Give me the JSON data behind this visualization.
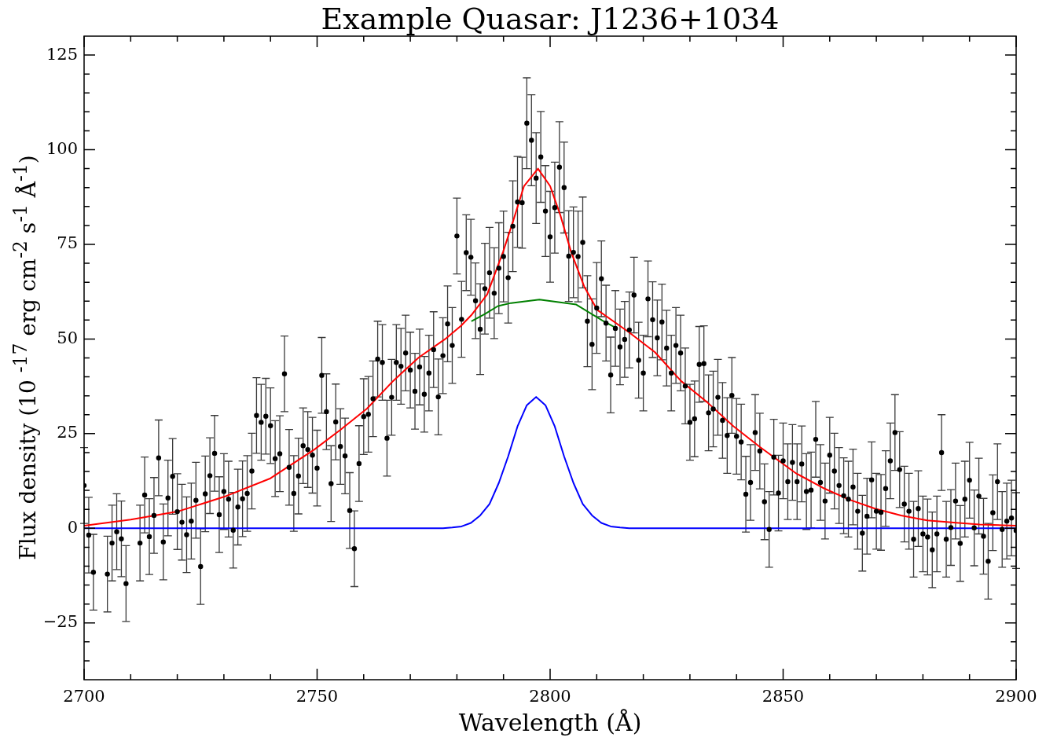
{
  "chart_data": {
    "type": "scatter",
    "title": "Example Quasar: J1236+1034",
    "xlabel": "Wavelength (Å)",
    "ylabel": "Flux density (10 $^{-17}$ erg cm$^{-2}$ s$^{-1}$ Å$^{-1}$)",
    "xlim": [
      2700,
      2900
    ],
    "xticks": [
      2700,
      {
        "value": 2710,
        "label": null
      },
      {
        "value": 2720,
        "label": null
      },
      {
        "value": 2730,
        "label": null
      },
      {
        "value": 2740,
        "label": null
      },
      2750,
      {
        "value": 2760,
        "label": null
      },
      {
        "value": 2770,
        "label": null
      },
      {
        "value": 2780,
        "label": null
      },
      {
        "value": 2790,
        "label": null
      },
      2800,
      {
        "value": 2810,
        "label": null
      },
      {
        "value": 2820,
        "label": null
      },
      {
        "value": 2830,
        "label": null
      },
      {
        "value": 2840,
        "label": null
      },
      2850,
      {
        "value": 2860,
        "label": null
      },
      {
        "value": 2870,
        "label": null
      },
      {
        "value": 2880,
        "label": null
      },
      {
        "value": 2890,
        "label": null
      },
      2900
    ],
    "ylim": [
      -40,
      130
    ],
    "yticks": [
      {
        "value": -35,
        "label": null
      },
      {
        "value": -30,
        "label": null
      },
      {
        "value": -25,
        "label": "−25"
      },
      {
        "value": -20,
        "label": null
      },
      {
        "value": -15,
        "label": null
      },
      {
        "value": -10,
        "label": null
      },
      {
        "value": -5,
        "label": null
      },
      0,
      {
        "value": 5,
        "label": null
      },
      {
        "value": 10,
        "label": null
      },
      {
        "value": 15,
        "label": null
      },
      {
        "value": 20,
        "label": null
      },
      25,
      {
        "value": 30,
        "label": null
      },
      {
        "value": 35,
        "label": null
      },
      {
        "value": 40,
        "label": null
      },
      {
        "value": 45,
        "label": null
      },
      50,
      {
        "value": 55,
        "label": null
      },
      {
        "value": 60,
        "label": null
      },
      {
        "value": 65,
        "label": null
      },
      {
        "value": 70,
        "label": null
      },
      75,
      {
        "value": 80,
        "label": null
      },
      {
        "value": 85,
        "label": null
      },
      {
        "value": 90,
        "label": null
      },
      {
        "value": 95,
        "label": null
      },
      100,
      {
        "value": 105,
        "label": null
      },
      {
        "value": 110,
        "label": null
      },
      {
        "value": 115,
        "label": null
      },
      {
        "value": 120,
        "label": null
      },
      125
    ],
    "marker": "circle",
    "series": [
      {
        "type": "scatter",
        "color": "#000000",
        "x": [
          2700,
          2701,
          2702,
          2705,
          2706,
          2707,
          2708,
          2709,
          2712,
          2713,
          2714,
          2715,
          2716,
          2717,
          2718,
          2719,
          2720,
          2721,
          2722,
          2723,
          2724,
          2725,
          2726,
          2727,
          2728,
          2729,
          2730,
          2731,
          2732,
          2733,
          2734,
          2735,
          2736,
          2737,
          2738,
          2739,
          2740,
          2741,
          2742,
          2743,
          2744,
          2745,
          2746,
          2747,
          2748,
          2749,
          2750,
          2751,
          2752,
          2753,
          2754,
          2755,
          2756,
          2757,
          2758,
          2759,
          2760,
          2761,
          2762,
          2763,
          2764,
          2765,
          2766,
          2767,
          2768,
          2769,
          2770,
          2771,
          2772,
          2773,
          2774,
          2775,
          2776,
          2777,
          2778,
          2779,
          2780,
          2781,
          2782,
          2783,
          2784,
          2785,
          2786,
          2787,
          2788,
          2789,
          2790,
          2791,
          2792,
          2793,
          2794,
          2795,
          2796,
          2797,
          2798,
          2799,
          2800,
          2801,
          2802,
          2803,
          2804,
          2805,
          2806,
          2807,
          2808,
          2809,
          2810,
          2811,
          2812,
          2813,
          2814,
          2815,
          2816,
          2817,
          2818,
          2819,
          2820,
          2821,
          2822,
          2823,
          2824,
          2825,
          2826,
          2827,
          2828,
          2829,
          2830,
          2831,
          2832,
          2833,
          2834,
          2835,
          2836,
          2837,
          2838,
          2839,
          2840,
          2841,
          2842,
          2843,
          2844,
          2845,
          2846,
          2847,
          2848,
          2849,
          2850,
          2851,
          2852,
          2853,
          2854,
          2855,
          2856,
          2857,
          2858,
          2859,
          2860,
          2861,
          2862,
          2863,
          2864,
          2865,
          2866,
          2867,
          2868,
          2869,
          2870,
          2871,
          2872,
          2873,
          2874,
          2875,
          2876,
          2877,
          2878,
          2879,
          2880,
          2881,
          2882,
          2883,
          2884,
          2885,
          2886,
          2887,
          2888,
          2889,
          2890,
          2891,
          2892,
          2893,
          2894,
          2895,
          2896,
          2897,
          2898,
          2899,
          2900
        ],
        "values": [
          11.3,
          -1.8,
          -11.6,
          -12.1,
          -3.9,
          -0.9,
          -2.8,
          -14.6,
          -3.9,
          8.8,
          -2.2,
          3.4,
          18.6,
          -3.6,
          8.0,
          13.7,
          4.4,
          1.6,
          -1.7,
          1.9,
          7.4,
          -10.1,
          9.1,
          13.9,
          19.8,
          3.6,
          9.7,
          7.7,
          -0.5,
          5.6,
          7.8,
          9.2,
          15.1,
          29.8,
          28.0,
          29.6,
          27.1,
          18.4,
          19.7,
          40.8,
          16.1,
          9.2,
          13.8,
          21.8,
          20.8,
          19.3,
          15.9,
          40.4,
          30.8,
          11.8,
          28.1,
          21.6,
          19.1,
          4.7,
          -5.4,
          17.1,
          29.5,
          30.1,
          34.2,
          44.7,
          43.8,
          23.8,
          34.6,
          43.8,
          42.8,
          46.3,
          41.8,
          36.2,
          42.6,
          35.4,
          41.0,
          47.2,
          34.7,
          45.6,
          54.0,
          48.3,
          77.2,
          55.2,
          72.8,
          71.6,
          60.1,
          52.6,
          63.3,
          67.5,
          62.1,
          68.7,
          71.8,
          66.2,
          79.8,
          86.2,
          86.0,
          107.0,
          102.5,
          92.5,
          98.1,
          83.8,
          77.0,
          84.7,
          95.4,
          90.0,
          71.9,
          72.9,
          71.8,
          75.5,
          54.7,
          48.6,
          58.2,
          65.9,
          54.2,
          40.5,
          52.8,
          47.9,
          49.9,
          52.4,
          61.6,
          44.4,
          41.0,
          60.6,
          55.1,
          50.3,
          54.5,
          47.6,
          41.0,
          48.3,
          46.3,
          37.6,
          28.0,
          28.9,
          43.3,
          43.5,
          30.5,
          31.5,
          34.6,
          28.5,
          24.5,
          35.1,
          24.3,
          22.8,
          9.0,
          12.1,
          25.3,
          20.4,
          7.0,
          -0.3,
          18.8,
          9.3,
          17.8,
          12.3,
          17.4,
          12.3,
          17.0,
          9.7,
          10.1,
          23.5,
          12.1,
          7.2,
          19.3,
          15.1,
          11.3,
          8.6,
          7.7,
          10.9,
          4.5,
          -1.3,
          3.2,
          12.8,
          4.5,
          4.2,
          10.5,
          17.8,
          25.3,
          15.5,
          6.4,
          4.5,
          -2.9,
          5.2,
          -1.5,
          -2.3,
          -5.7,
          -1.5,
          20.0,
          -2.9,
          0.2,
          7.2,
          -4.0,
          7.7,
          12.7,
          0.1,
          8.5,
          -2.1,
          -8.7,
          4.1,
          12.3,
          -0.3,
          1.9,
          2.7,
          -0.6
        ],
        "errors": [
          10,
          10,
          10,
          10,
          10,
          10,
          10,
          10,
          10,
          10,
          10,
          10,
          10,
          10,
          10,
          10,
          10,
          10,
          10,
          10,
          10,
          10,
          10,
          10,
          10,
          10,
          10,
          10,
          10,
          10,
          10,
          10,
          10,
          10,
          10,
          10,
          10,
          10,
          10,
          10,
          10,
          10,
          10,
          10,
          10,
          10,
          10,
          10,
          10,
          10,
          10,
          10,
          10,
          10,
          10,
          10,
          10,
          10,
          10,
          10,
          10,
          10,
          10,
          10,
          10,
          10,
          10,
          10,
          10,
          10,
          10,
          10,
          10,
          10,
          10,
          10,
          10,
          10,
          10,
          10,
          10,
          12,
          12,
          12,
          12,
          12,
          12,
          12,
          12,
          12,
          12,
          12,
          12,
          12,
          12,
          12,
          12,
          12,
          12,
          12,
          12,
          12,
          12,
          12,
          12,
          12,
          12,
          10,
          10,
          10,
          10,
          10,
          10,
          10,
          10,
          10,
          10,
          10,
          10,
          10,
          10,
          10,
          10,
          10,
          10,
          10,
          10,
          10,
          10,
          10,
          10,
          10,
          10,
          10,
          10,
          10,
          10,
          10,
          10,
          10,
          10,
          10,
          10,
          10,
          10,
          10,
          10,
          10,
          10,
          10,
          10,
          10,
          10,
          10,
          10,
          10,
          10,
          10,
          10,
          10,
          10,
          10,
          10,
          10,
          10,
          10,
          10,
          10,
          10,
          10,
          10,
          10,
          10,
          10,
          10,
          10,
          10,
          10,
          10,
          10,
          10,
          10,
          10,
          10,
          10,
          10,
          10,
          10,
          10,
          10,
          10,
          10,
          10,
          10,
          10,
          10,
          10
        ]
      },
      {
        "type": "line",
        "color": "#ff0000",
        "marker": "none",
        "x": [
          2700,
          2710,
          2720,
          2730,
          2740,
          2749.4,
          2755,
          2760.7,
          2766.3,
          2771.8,
          2777.5,
          2780.9,
          2783.1,
          2786.5,
          2789.9,
          2792.1,
          2794.4,
          2797.4,
          2800,
          2802.2,
          2804.5,
          2807.3,
          2810.1,
          2816.9,
          2822.5,
          2828.1,
          2833.7,
          2839.3,
          2845,
          2852.8,
          2858.5,
          2864.1,
          2869.7,
          2875.3,
          2880.9,
          2886.6,
          2892.2,
          2900
        ],
        "values": [
          0.7,
          2.3,
          4.4,
          8.3,
          13.2,
          20.8,
          26,
          31.6,
          38.9,
          45.1,
          50.0,
          53.5,
          56.3,
          61.8,
          73.0,
          81.3,
          90.4,
          95.0,
          90.4,
          82.7,
          73.0,
          63.9,
          57.7,
          51.8,
          46.5,
          38.9,
          33.3,
          27.0,
          21.5,
          14.5,
          10.7,
          7.6,
          5.2,
          3.4,
          2.1,
          1.5,
          1.0,
          0.7
        ]
      },
      {
        "type": "line",
        "color": "#008000",
        "marker": "none",
        "x": [
          2783.1,
          2786,
          2788.8,
          2791.6,
          2797.7,
          2805.6,
          2811.2,
          2814
        ],
        "values": [
          54.7,
          56.6,
          58.7,
          59.5,
          60.4,
          59.1,
          54.9,
          53.0
        ]
      },
      {
        "type": "line",
        "color": "#0000ff",
        "marker": "none",
        "x": [
          2700,
          2777,
          2779,
          2781,
          2783,
          2785,
          2787,
          2789,
          2791,
          2793,
          2795,
          2797,
          2799,
          2801,
          2803,
          2805,
          2807,
          2809,
          2811,
          2813,
          2815,
          2817,
          2900
        ],
        "values": [
          0,
          0,
          0.2,
          0.5,
          1.4,
          3.4,
          6.4,
          12.0,
          19.0,
          26.9,
          32.5,
          34.7,
          32.5,
          26.9,
          19.0,
          12.0,
          6.4,
          3.4,
          1.4,
          0.5,
          0.2,
          0,
          0
        ]
      }
    ]
  }
}
